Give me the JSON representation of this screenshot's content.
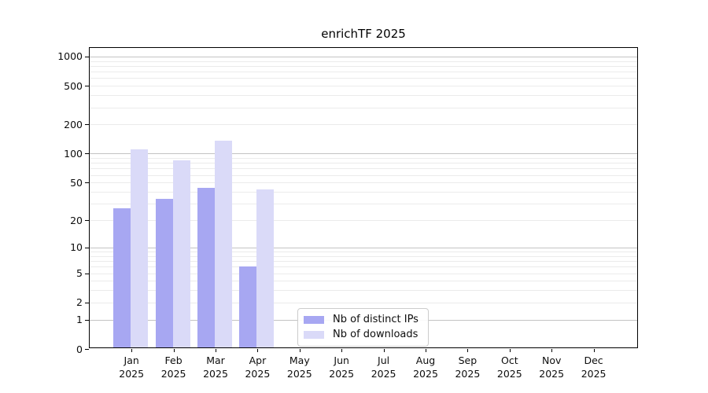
{
  "chart_data": {
    "type": "bar",
    "title": "enrichTF 2025",
    "scale": "symlog (position = log10(1+value))",
    "grid": "horizontal major + minor",
    "categories": [
      "Jan",
      "Feb",
      "Mar",
      "Apr",
      "May",
      "Jun",
      "Jul",
      "Aug",
      "Sep",
      "Oct",
      "Nov",
      "Dec"
    ],
    "category_year": "2025",
    "series": [
      {
        "name": "Nb of distinct IPs",
        "color": "#a7a7f2",
        "values": [
          27,
          34,
          44,
          6,
          0,
          0,
          0,
          0,
          0,
          0,
          0,
          0
        ]
      },
      {
        "name": "Nb of downloads",
        "color": "#dadaf8",
        "values": [
          110,
          85,
          135,
          42,
          0,
          0,
          0,
          0,
          0,
          0,
          0,
          0
        ]
      }
    ],
    "y_ticks": [
      0,
      1,
      2,
      5,
      10,
      20,
      50,
      100,
      200,
      500,
      1000
    ],
    "y_major_gridlines": [
      1,
      10,
      100,
      1000
    ],
    "ylim": [
      0,
      1275
    ],
    "legend": {
      "position": "lower center",
      "entries": [
        "Nb of distinct IPs",
        "Nb of downloads"
      ]
    }
  }
}
